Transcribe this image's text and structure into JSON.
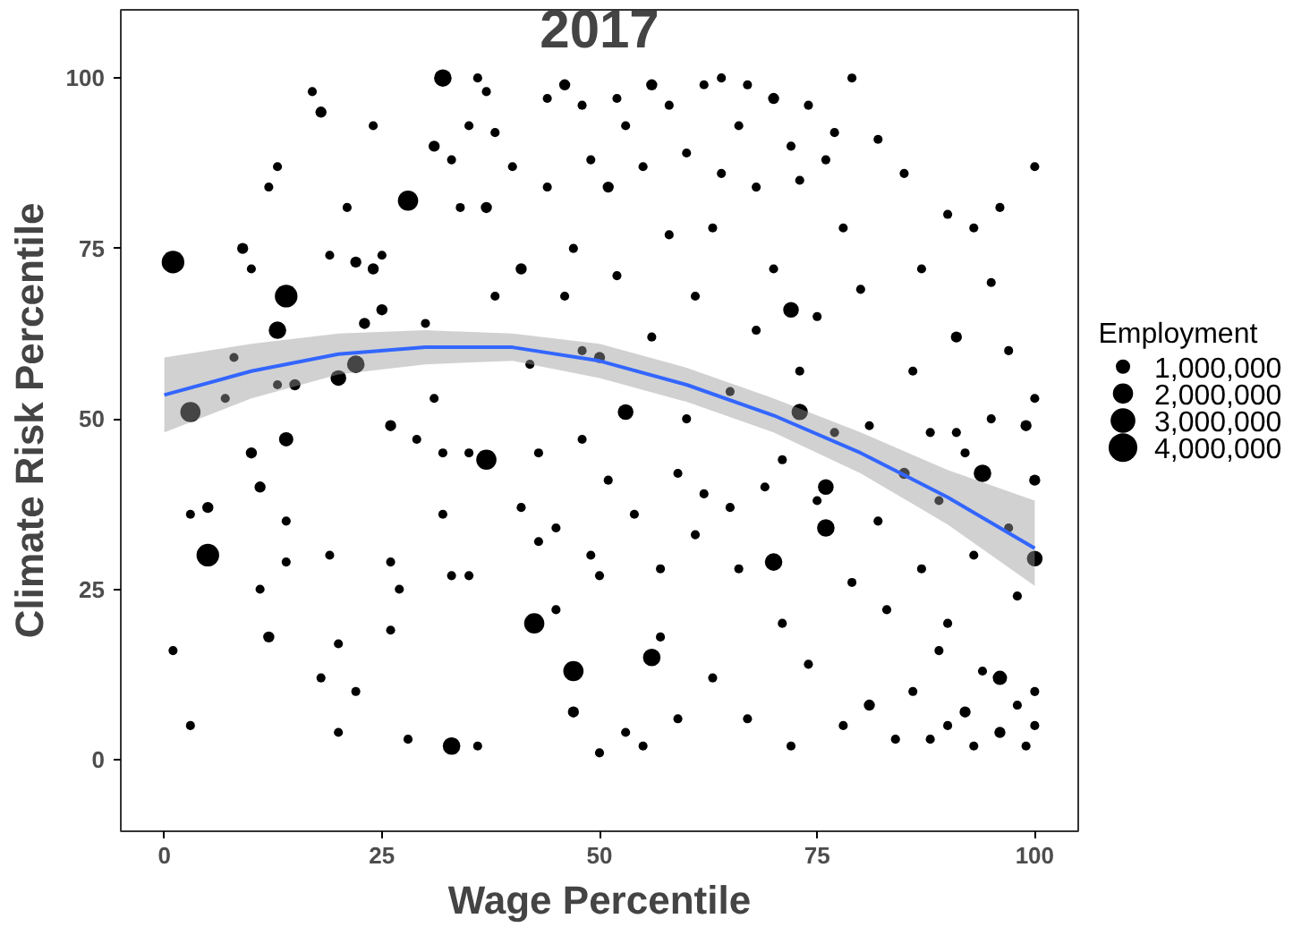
{
  "chart_data": {
    "type": "bubble",
    "title": "2017",
    "xlabel": "Wage Percentile",
    "ylabel": "Climate Risk Percentile",
    "legend_title": "Employment",
    "xlim": [
      -5,
      105
    ],
    "ylim": [
      -10.5,
      110
    ],
    "xticks": [
      0,
      25,
      50,
      75,
      100
    ],
    "yticks": [
      0,
      25,
      50,
      75,
      100
    ],
    "grid": false,
    "size_legend": [
      {
        "value": 1000000,
        "label": "1,000,000"
      },
      {
        "value": 2000000,
        "label": "2,000,000"
      },
      {
        "value": 3000000,
        "label": "3,000,000"
      },
      {
        "value": 4000000,
        "label": "4,000,000"
      }
    ],
    "series": [
      {
        "color": "#000000",
        "x": [
          1,
          3,
          5,
          14,
          13,
          14,
          22,
          20,
          28,
          32,
          33,
          37,
          42.5,
          47,
          53,
          56,
          72,
          70,
          73,
          76,
          76,
          94,
          96,
          100,
          1,
          3,
          3,
          5,
          7,
          8,
          9,
          10,
          10,
          11,
          11,
          12,
          12,
          13,
          13,
          14,
          14,
          15,
          17,
          18,
          18,
          19,
          19,
          20,
          20,
          21,
          22,
          22,
          23,
          24,
          24,
          25,
          25,
          26,
          26,
          26,
          27,
          28,
          29,
          30,
          31,
          31,
          32,
          32,
          33,
          33,
          34,
          35,
          35,
          35,
          36,
          36,
          37,
          37,
          38,
          38,
          40,
          41,
          41,
          42,
          43,
          43,
          44,
          44,
          45,
          45,
          46,
          46,
          47,
          47,
          48,
          48,
          48,
          49,
          49,
          50,
          50,
          50,
          51,
          51,
          52,
          52,
          53,
          53,
          54,
          55,
          55,
          56,
          56,
          57,
          57,
          58,
          58,
          59,
          59,
          60,
          60,
          61,
          61,
          62,
          62,
          63,
          63,
          64,
          64,
          65,
          65,
          66,
          66,
          67,
          67,
          68,
          68,
          69,
          70,
          70,
          71,
          71,
          72,
          72,
          73,
          73,
          74,
          74,
          75,
          75,
          76,
          77,
          77,
          78,
          78,
          79,
          79,
          80,
          81,
          81,
          82,
          82,
          83,
          84,
          85,
          85,
          86,
          86,
          87,
          87,
          88,
          88,
          89,
          89,
          90,
          90,
          90,
          91,
          91,
          92,
          92,
          93,
          93,
          93,
          94,
          95,
          95,
          96,
          96,
          97,
          97,
          98,
          98,
          99,
          99,
          100,
          100,
          100,
          100,
          100
        ],
        "values": [
          73,
          51,
          30,
          68,
          63,
          47,
          58,
          56,
          82,
          100,
          2,
          44,
          20,
          13,
          51,
          15,
          66,
          29,
          51,
          40,
          34,
          42,
          12,
          29.5,
          16,
          5,
          36,
          37,
          53,
          59,
          75,
          72,
          45,
          40,
          25,
          84,
          18,
          87,
          55,
          35,
          29,
          55,
          98,
          95,
          12,
          74,
          30,
          17,
          4,
          81,
          73,
          10,
          64,
          93,
          72,
          74,
          66,
          49,
          29,
          19,
          25,
          3,
          47,
          64,
          90,
          53,
          45,
          36,
          88,
          27,
          81,
          93,
          45,
          27,
          100,
          2,
          98,
          81,
          92,
          68,
          87,
          72,
          37,
          58,
          45,
          32,
          84,
          97,
          22,
          34,
          99,
          68,
          75,
          7,
          96,
          60,
          47,
          88,
          30,
          1,
          59,
          27,
          84,
          41,
          97,
          71,
          93,
          4,
          36,
          87,
          2,
          99,
          62,
          28,
          18,
          96,
          77,
          42,
          6,
          89,
          50,
          68,
          33,
          99,
          39,
          78,
          12,
          100,
          86,
          54,
          37,
          93,
          28,
          99,
          6,
          84,
          63,
          40,
          97,
          72,
          44,
          20,
          90,
          2,
          85,
          57,
          96,
          14,
          65,
          38,
          88,
          92,
          48,
          78,
          5,
          100,
          26,
          69,
          8,
          49,
          91,
          35,
          22,
          3,
          86,
          42,
          57,
          10,
          72,
          28,
          48,
          3,
          38,
          16,
          80,
          20,
          5,
          62,
          48,
          45,
          7,
          78,
          30,
          2,
          13,
          70,
          50,
          81,
          4,
          60,
          34,
          24,
          8,
          49,
          2,
          87,
          53,
          41,
          10,
          5
        ],
        "sizes": [
          2500000,
          2000000,
          2500000,
          2500000,
          1500000,
          1000000,
          1500000,
          1200000,
          2000000,
          1500000,
          1500000,
          2000000,
          2000000,
          2000000,
          1200000,
          1500000,
          1200000,
          1500000,
          1300000,
          1200000,
          1500000,
          1500000,
          1000000,
          1200000,
          400000,
          400000,
          400000,
          600000,
          400000,
          400000,
          600000,
          400000,
          600000,
          600000,
          400000,
          400000,
          600000,
          400000,
          400000,
          400000,
          400000,
          600000,
          400000,
          600000,
          400000,
          400000,
          400000,
          400000,
          400000,
          400000,
          600000,
          400000,
          600000,
          400000,
          600000,
          400000,
          600000,
          600000,
          400000,
          400000,
          400000,
          400000,
          400000,
          400000,
          600000,
          400000,
          400000,
          400000,
          400000,
          400000,
          400000,
          400000,
          400000,
          400000,
          400000,
          400000,
          400000,
          600000,
          400000,
          400000,
          400000,
          600000,
          400000,
          400000,
          400000,
          400000,
          400000,
          400000,
          400000,
          400000,
          600000,
          400000,
          400000,
          600000,
          400000,
          400000,
          400000,
          400000,
          400000,
          400000,
          600000,
          400000,
          600000,
          400000,
          400000,
          400000,
          400000,
          400000,
          400000,
          400000,
          400000,
          600000,
          400000,
          400000,
          400000,
          400000,
          400000,
          400000,
          400000,
          400000,
          400000,
          400000,
          400000,
          400000,
          400000,
          400000,
          400000,
          400000,
          400000,
          400000,
          400000,
          400000,
          400000,
          400000,
          400000,
          400000,
          400000,
          400000,
          600000,
          400000,
          400000,
          400000,
          400000,
          400000,
          400000,
          400000,
          400000,
          400000,
          400000,
          400000,
          400000,
          400000,
          400000,
          400000,
          400000,
          400000,
          400000,
          400000,
          600000,
          400000,
          400000,
          400000,
          400000,
          400000,
          400000,
          600000,
          400000,
          400000,
          400000,
          400000,
          400000,
          400000,
          400000,
          400000,
          400000,
          400000,
          400000,
          600000,
          400000,
          400000,
          600000,
          400000,
          400000,
          400000,
          400000,
          400000,
          400000,
          400000,
          600000,
          400000,
          400000,
          400000,
          400000,
          600000,
          400000,
          400000,
          400000,
          600000,
          400000,
          400000
        ]
      },
      {
        "type": "line",
        "color": "#3366ff",
        "x": [
          0,
          10,
          20,
          30,
          40,
          50,
          60,
          70,
          80,
          90,
          100
        ],
        "values": [
          53.5,
          57,
          59.5,
          60.5,
          60.5,
          58.5,
          55,
          50.5,
          45,
          38.5,
          31
        ],
        "lower": [
          48,
          53,
          56.5,
          58,
          58.5,
          56,
          52.5,
          48,
          42,
          34.5,
          25.5
        ],
        "upper": [
          59,
          61,
          62.5,
          63,
          62.5,
          61,
          57.5,
          53,
          48,
          42.5,
          38
        ]
      }
    ]
  }
}
